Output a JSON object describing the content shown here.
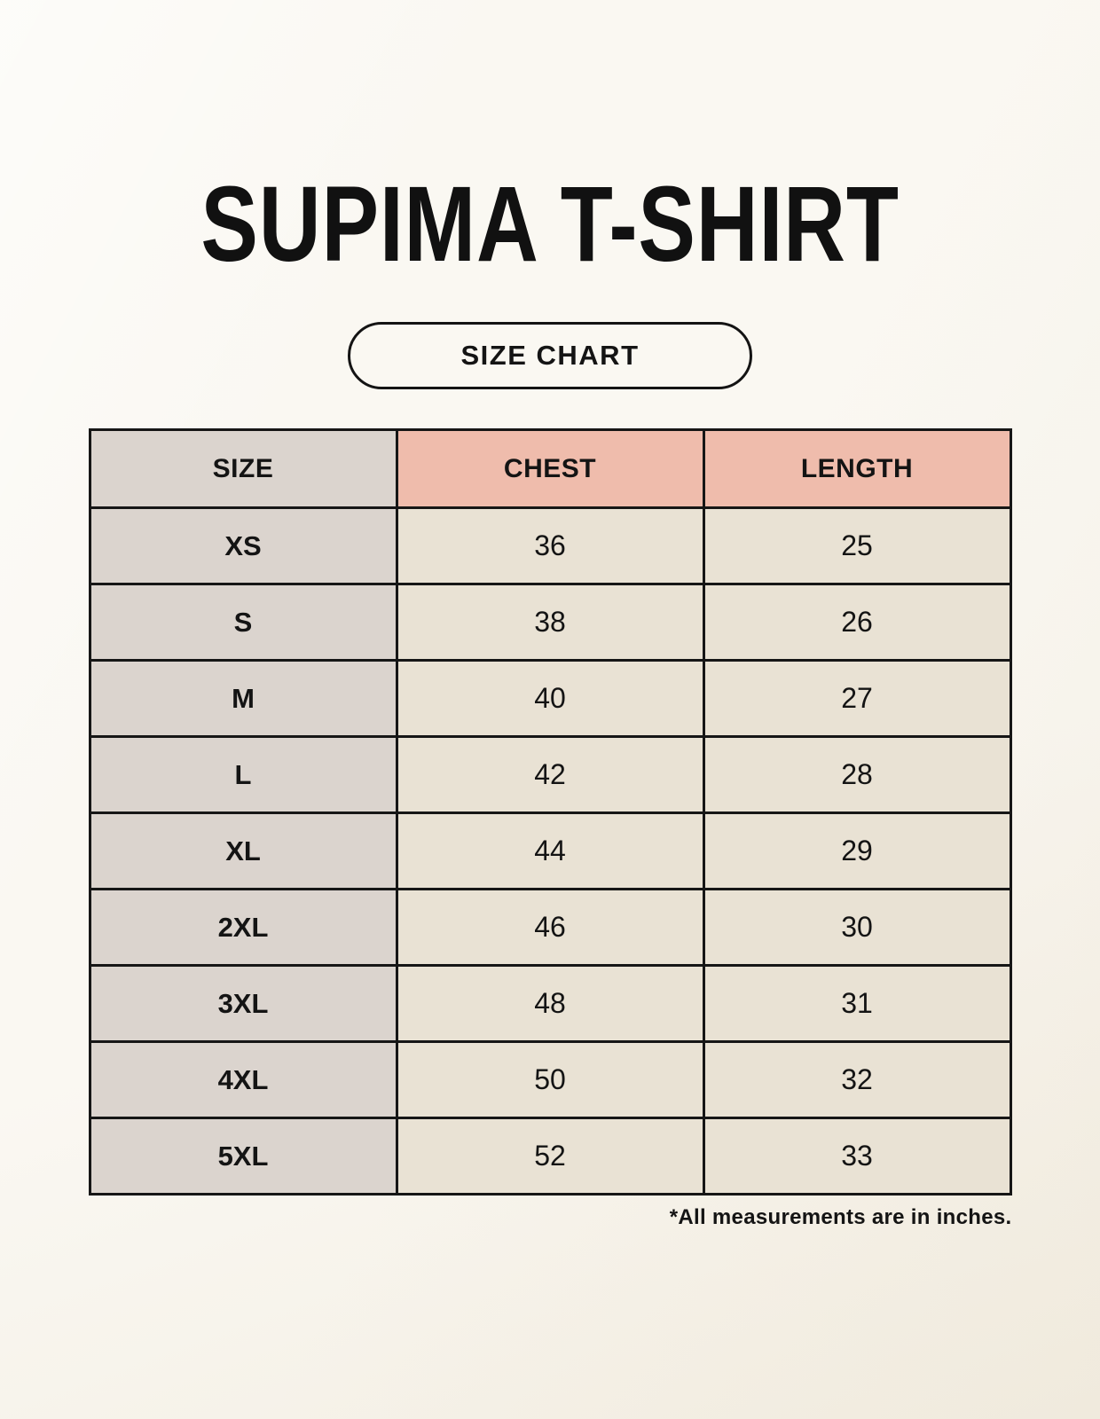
{
  "title": "SUPIMA T-SHIRT",
  "badge_label": "SIZE CHART",
  "footnote": "*All measurements are in inches.",
  "table": {
    "columns": [
      "SIZE",
      "CHEST",
      "LENGTH"
    ],
    "rows": [
      {
        "size": "XS",
        "chest": "36",
        "length": "25"
      },
      {
        "size": "S",
        "chest": "38",
        "length": "26"
      },
      {
        "size": "M",
        "chest": "40",
        "length": "27"
      },
      {
        "size": "L",
        "chest": "42",
        "length": "28"
      },
      {
        "size": "XL",
        "chest": "44",
        "length": "29"
      },
      {
        "size": "2XL",
        "chest": "46",
        "length": "30"
      },
      {
        "size": "3XL",
        "chest": "48",
        "length": "31"
      },
      {
        "size": "4XL",
        "chest": "50",
        "length": "32"
      },
      {
        "size": "5XL",
        "chest": "52",
        "length": "33"
      }
    ]
  },
  "colors": {
    "background": "#f7f3ea",
    "size_column_bg": "#dbd4ce",
    "accent_header_bg": "#efbcac",
    "data_cell_bg": "#e9e2d4",
    "border": "#161616",
    "text": "#141414"
  },
  "chart_data": {
    "type": "table",
    "title": "SUPIMA T-SHIRT",
    "subtitle": "SIZE CHART",
    "columns": [
      "SIZE",
      "CHEST",
      "LENGTH"
    ],
    "rows": [
      [
        "XS",
        36,
        25
      ],
      [
        "S",
        38,
        26
      ],
      [
        "M",
        40,
        27
      ],
      [
        "L",
        42,
        28
      ],
      [
        "XL",
        44,
        29
      ],
      [
        "2XL",
        46,
        30
      ],
      [
        "3XL",
        48,
        31
      ],
      [
        "4XL",
        50,
        32
      ],
      [
        "5XL",
        52,
        33
      ]
    ],
    "units": "inches",
    "note": "*All measurements are in inches."
  }
}
